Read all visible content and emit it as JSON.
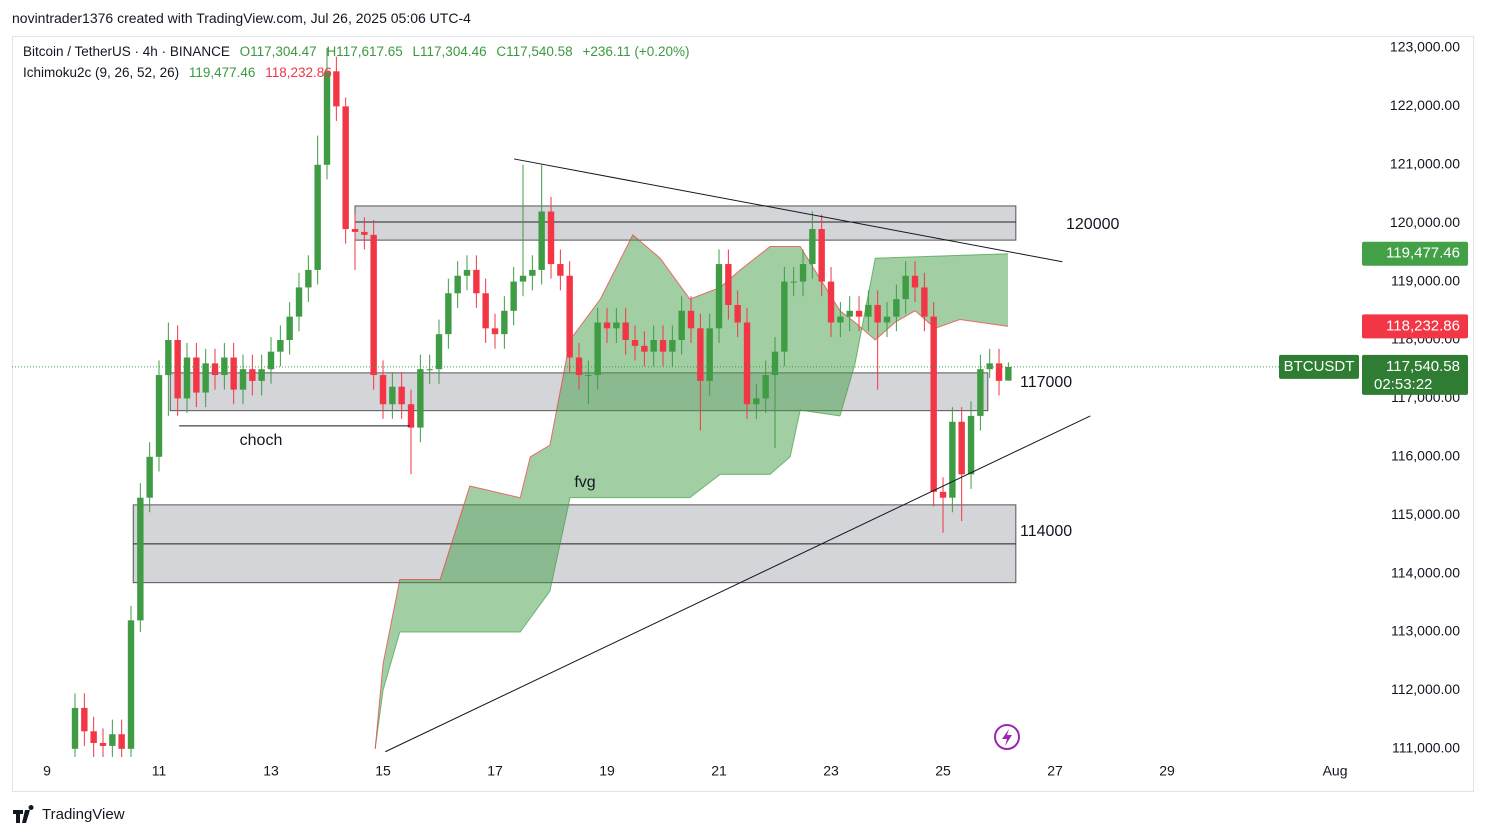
{
  "header": {
    "attribution": "novintrader1376 created with TradingView.com, Jul 26, 2025 05:06 UTC-4"
  },
  "footer": {
    "brand": "TradingView"
  },
  "chart_data": {
    "type": "candlestick",
    "symbol": "Bitcoin / TetherUS · 4h · BINANCE",
    "legend_open": "O117,304.47",
    "legend_high": "H117,617.65",
    "legend_low": "L117,304.46",
    "legend_close": "C117,540.58",
    "legend_change": "+236.11 (+0.20%)",
    "indicator": "Ichimoku2c (9, 26, 52, 26)",
    "up_color": "#3f9c44",
    "down_color": "#f23645",
    "grid": false,
    "x": [
      9.5,
      9.667,
      9.833,
      10,
      10.167,
      10.333,
      10.5,
      10.667,
      10.833,
      11,
      11.167,
      11.333,
      11.5,
      11.667,
      11.833,
      12,
      12.167,
      12.333,
      12.5,
      12.667,
      12.833,
      13,
      13.167,
      13.333,
      13.5,
      13.667,
      13.833,
      14,
      14.167,
      14.333,
      14.5,
      14.667,
      14.833,
      15,
      15.167,
      15.333,
      15.5,
      15.667,
      15.833,
      16,
      16.167,
      16.333,
      16.5,
      16.667,
      16.833,
      17,
      17.167,
      17.333,
      17.5,
      17.667,
      17.833,
      18,
      18.167,
      18.333,
      18.5,
      18.667,
      18.833,
      19,
      19.167,
      19.333,
      19.5,
      19.667,
      19.833,
      20,
      20.167,
      20.333,
      20.5,
      20.667,
      20.833,
      21,
      21.167,
      21.333,
      21.5,
      21.667,
      21.833,
      22,
      22.167,
      22.333,
      22.5,
      22.667,
      22.833,
      23,
      23.167,
      23.333,
      23.5,
      23.667,
      23.833,
      24,
      24.167,
      24.333,
      24.5,
      24.667,
      24.833,
      25,
      25.167,
      25.333,
      25.5,
      25.667,
      25.833,
      26,
      26.167
    ],
    "open": [
      111000,
      111700,
      111300,
      111100,
      111050,
      111250,
      111000,
      113200,
      115300,
      116000,
      117400,
      118000,
      117000,
      117700,
      117100,
      117600,
      117400,
      117700,
      117150,
      117500,
      117300,
      117500,
      117800,
      118000,
      118400,
      118900,
      119200,
      121000,
      122600,
      122000,
      119900,
      119850,
      119800,
      117400,
      116900,
      117200,
      116900,
      116500,
      117500,
      117500,
      118100,
      118800,
      119100,
      119200,
      118800,
      118200,
      118100,
      118500,
      119000,
      119100,
      119200,
      120200,
      119300,
      119100,
      117700,
      117400,
      117400,
      118300,
      118200,
      118300,
      118000,
      117900,
      117800,
      118000,
      117800,
      118000,
      118500,
      118200,
      117300,
      118200,
      119300,
      118600,
      118300,
      116900,
      117000,
      117400,
      117800,
      119000,
      119000,
      119300,
      119900,
      119000,
      118300,
      118400,
      118500,
      118400,
      118600,
      118300,
      118400,
      118700,
      119100,
      118900,
      118400,
      115400,
      115300,
      116600,
      115700,
      116700,
      117500,
      117600,
      117304.47
    ],
    "high": [
      111950,
      111950,
      111550,
      111350,
      111500,
      111500,
      113450,
      115550,
      116250,
      117650,
      118300,
      118250,
      117950,
      117950,
      117850,
      117850,
      117950,
      117950,
      117750,
      117750,
      117750,
      118050,
      118250,
      118650,
      119150,
      119450,
      121500,
      123000,
      122850,
      122150,
      120150,
      120100,
      120050,
      117650,
      117450,
      117450,
      117150,
      117750,
      117750,
      118350,
      119050,
      119350,
      119450,
      119450,
      119050,
      118450,
      118750,
      119250,
      121000,
      119450,
      121000,
      120450,
      119550,
      119350,
      117950,
      117650,
      118550,
      118550,
      118550,
      118550,
      118250,
      118150,
      118250,
      118250,
      118250,
      118750,
      118750,
      118450,
      118450,
      119550,
      119550,
      118850,
      118550,
      117250,
      117650,
      118050,
      119250,
      119250,
      119550,
      120200,
      120150,
      119250,
      118650,
      118750,
      118750,
      118850,
      118850,
      118650,
      118950,
      119350,
      119350,
      119150,
      118650,
      115650,
      116850,
      116850,
      116950,
      117750,
      117850,
      117850,
      117617.65
    ],
    "low": [
      110750,
      111050,
      110850,
      110800,
      110800,
      110750,
      110750,
      113000,
      115050,
      115750,
      116700,
      116700,
      116750,
      116850,
      116850,
      117150,
      117150,
      116900,
      116900,
      117050,
      117050,
      117250,
      117550,
      117750,
      118150,
      118650,
      118950,
      120750,
      121750,
      119650,
      119200,
      119550,
      117150,
      116650,
      116650,
      116650,
      115700,
      116250,
      117250,
      117250,
      117850,
      118550,
      118850,
      118550,
      117950,
      117850,
      117850,
      118250,
      118750,
      118850,
      118950,
      119050,
      118850,
      117450,
      117150,
      116900,
      117150,
      117950,
      117950,
      117750,
      117650,
      117550,
      117550,
      117550,
      117550,
      117750,
      117950,
      116450,
      117050,
      117950,
      118350,
      118050,
      116650,
      116650,
      116750,
      116150,
      117550,
      118750,
      118750,
      119050,
      118750,
      118050,
      118050,
      118150,
      118150,
      118150,
      117150,
      118050,
      118150,
      118450,
      118650,
      118150,
      115150,
      114700,
      115050,
      114900,
      115450,
      116450,
      117350,
      117050,
      117304.46
    ],
    "close": [
      111700,
      111300,
      111100,
      111050,
      111250,
      111000,
      113200,
      115300,
      116000,
      117400,
      118000,
      117000,
      117700,
      117100,
      117600,
      117400,
      117700,
      117150,
      117500,
      117300,
      117500,
      117800,
      118000,
      118400,
      118900,
      119200,
      121000,
      122600,
      122000,
      119900,
      119850,
      119800,
      117400,
      116900,
      117200,
      116900,
      116500,
      117500,
      117500,
      118100,
      118800,
      119100,
      119200,
      118800,
      118200,
      118100,
      118500,
      119000,
      119100,
      119200,
      120200,
      119300,
      119100,
      117700,
      117400,
      117400,
      118300,
      118200,
      118300,
      118000,
      117900,
      117800,
      118000,
      117800,
      118000,
      118500,
      118200,
      117300,
      118200,
      119300,
      118600,
      118300,
      116900,
      117000,
      117400,
      117800,
      119000,
      119000,
      119300,
      119900,
      119000,
      118300,
      118400,
      118500,
      118400,
      118600,
      118300,
      118400,
      118700,
      119100,
      118900,
      118400,
      115400,
      115300,
      116600,
      115700,
      116700,
      117500,
      117600,
      117300,
      117540.58
    ],
    "xlim": [
      8.375,
      32.41
    ],
    "xticks": [
      9,
      11,
      13,
      15,
      17,
      19,
      21,
      23,
      25,
      27,
      29,
      {
        "value": 32,
        "label": "Aug"
      }
    ],
    "ylim": [
      110860,
      123205
    ],
    "yticks": [
      {
        "value": 111000,
        "label": "111,000.00"
      },
      {
        "value": 112000,
        "label": "112,000.00"
      },
      {
        "value": 113000,
        "label": "113,000.00"
      },
      {
        "value": 114000,
        "label": "114,000.00"
      },
      {
        "value": 115000,
        "label": "115,000.00"
      },
      {
        "value": 116000,
        "label": "116,000.00"
      },
      {
        "value": 117000,
        "label": "117,000.00"
      },
      {
        "value": 118000,
        "label": "118,000.00"
      },
      {
        "value": 119000,
        "label": "119,000.00"
      },
      {
        "value": 120000,
        "label": "120,000.00"
      },
      {
        "value": 121000,
        "label": "121,000.00"
      },
      {
        "value": 122000,
        "label": "122,000.00"
      },
      {
        "value": 123000,
        "label": "123,000.00"
      }
    ],
    "ichimoku": {
      "fill": "#43a047",
      "spans": [
        {
          "color": "#43a047",
          "x": [
            14.86,
            15.0,
            15.3,
            16.02,
            17.45,
            17.98,
            18.34,
            20.48,
            21.02,
            21.91,
            22.27,
            22.45,
            23.16,
            23.43,
            23.79,
            26.16
          ],
          "values": [
            111000,
            112000,
            113000,
            113000,
            113000,
            113700,
            115300,
            115300,
            115700,
            115700,
            116000,
            116800,
            116700,
            117600,
            119400,
            119477.46
          ],
          "value_label": "119,477.46"
        },
        {
          "color": "#f23645",
          "x": [
            14.86,
            15.0,
            15.3,
            16.02,
            16.55,
            17.45,
            17.63,
            17.98,
            18.34,
            18.88,
            19.46,
            19.95,
            20.48,
            21.02,
            21.38,
            21.91,
            22.45,
            23.16,
            23.43,
            23.79,
            24.14,
            24.5,
            24.86,
            25.3,
            26.16
          ],
          "values": [
            111000,
            112450,
            113900,
            113900,
            115500,
            115300,
            116000,
            116200,
            118000,
            118700,
            119800,
            119400,
            118700,
            118900,
            119200,
            119600,
            119600,
            118500,
            118300,
            118000,
            118300,
            118500,
            118200,
            118350,
            118232.86
          ],
          "value_label": "118,232.86"
        }
      ]
    },
    "zones": [
      {
        "start": 14.5,
        "end": 26.3,
        "low": 119710,
        "high": 120295,
        "mid": 120020,
        "label": "120000"
      },
      {
        "start": 11.2,
        "end": 25.8,
        "low": 116790,
        "high": 117437,
        "label": "117000"
      },
      {
        "start": 10.54,
        "end": 26.3,
        "low": 113845,
        "high": 115177,
        "mid": 114510,
        "label": "114000"
      }
    ],
    "trend_lines": [
      {
        "x": [
          11.36,
          15.48
        ],
        "values": [
          116530,
          116530
        ]
      },
      {
        "x": [
          17.34,
          27.13
        ],
        "values": [
          121100,
          119340
        ]
      },
      {
        "x": [
          15.04,
          27.63
        ],
        "values": [
          110950,
          116700
        ]
      }
    ],
    "annotations": [
      "choch",
      "fvg"
    ],
    "last_price": {
      "symbol_tag": "BTCUSDT",
      "value": 117540.58,
      "label": "117,540.58",
      "countdown": "02:53:22"
    }
  }
}
